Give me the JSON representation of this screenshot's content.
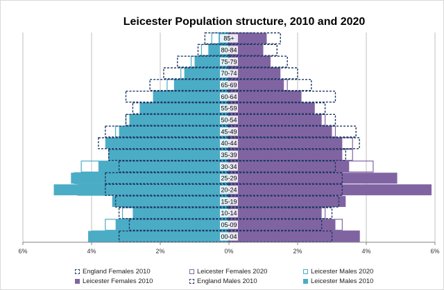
{
  "chart_data": {
    "type": "bar",
    "subtype": "population-pyramid",
    "title": "Leicester Population structure, 2010 and 2020",
    "categories": [
      "00-04",
      "05-09",
      "10-14",
      "15-19",
      "20-24",
      "25-29",
      "30-34",
      "35-39",
      "40-44",
      "45-49",
      "50-54",
      "55-59",
      "60-64",
      "65-69",
      "70-74",
      "75-79",
      "80-84",
      "85+"
    ],
    "x_ticks": [
      "6%",
      "4%",
      "2%",
      "0%",
      "2%",
      "4%",
      "6%"
    ],
    "xlim": [
      -6,
      6
    ],
    "units": "percent of population",
    "grid": true,
    "legend_position": "bottom",
    "series": [
      {
        "name": "Leicester Males 2010",
        "side": "left",
        "style": "solid",
        "color": "#4bacc6",
        "values": [
          4.1,
          3.3,
          2.8,
          3.4,
          5.1,
          4.6,
          3.8,
          3.5,
          3.6,
          3.2,
          2.9,
          2.6,
          2.2,
          1.6,
          1.3,
          1.0,
          0.6,
          0.3
        ]
      },
      {
        "name": "Leicester Females 2010",
        "side": "right",
        "style": "solid",
        "color": "#8064a2",
        "values": [
          3.8,
          3.1,
          2.7,
          3.4,
          5.9,
          4.9,
          3.5,
          3.3,
          3.3,
          3.0,
          2.7,
          2.5,
          2.1,
          1.6,
          1.5,
          1.2,
          1.0,
          1.1
        ]
      },
      {
        "name": "England Males 2010",
        "side": "left",
        "style": "dashed",
        "color": "#1f3864",
        "values": [
          3.2,
          2.9,
          3.2,
          3.3,
          3.6,
          3.6,
          3.2,
          3.5,
          3.8,
          3.6,
          3.0,
          2.8,
          3.0,
          2.3,
          1.9,
          1.5,
          0.9,
          0.7
        ]
      },
      {
        "name": "England Females 2010",
        "side": "right",
        "style": "dashed",
        "color": "#1f3864",
        "values": [
          3.0,
          2.7,
          3.0,
          3.2,
          3.3,
          3.3,
          3.1,
          3.4,
          3.8,
          3.7,
          3.1,
          2.8,
          3.1,
          2.4,
          2.0,
          1.7,
          1.4,
          1.5
        ]
      },
      {
        "name": "Leicester Males 2020",
        "side": "left",
        "style": "outline",
        "color": "#4bacc6",
        "values": [
          4.0,
          3.6,
          3.1,
          3.0,
          4.4,
          4.5,
          4.3,
          3.5,
          3.1,
          3.3,
          3.0,
          2.5,
          2.2,
          1.8,
          1.4,
          1.1,
          0.8,
          0.5
        ]
      },
      {
        "name": "Leicester Females 2020",
        "side": "right",
        "style": "outline",
        "color": "#8064a2",
        "values": [
          3.8,
          3.3,
          2.8,
          3.0,
          3.3,
          3.3,
          4.2,
          3.6,
          3.6,
          3.1,
          2.8,
          2.4,
          2.1,
          1.7,
          1.4,
          1.2,
          0.9,
          0.7
        ]
      }
    ],
    "legend": [
      {
        "label": "England Females 2010",
        "style": "dashed",
        "color": "#1f3864"
      },
      {
        "label": "Leicester Females 2020",
        "style": "outline",
        "color": "#8064a2"
      },
      {
        "label": "Leicester Males 2020",
        "style": "outline",
        "color": "#4bacc6"
      },
      {
        "label": "Leicester Females 2010",
        "style": "solid",
        "color": "#8064a2"
      },
      {
        "label": "England Males 2010",
        "style": "dashed",
        "color": "#1f3864"
      },
      {
        "label": "Leicester Males 2010",
        "style": "solid",
        "color": "#4bacc6"
      }
    ]
  }
}
